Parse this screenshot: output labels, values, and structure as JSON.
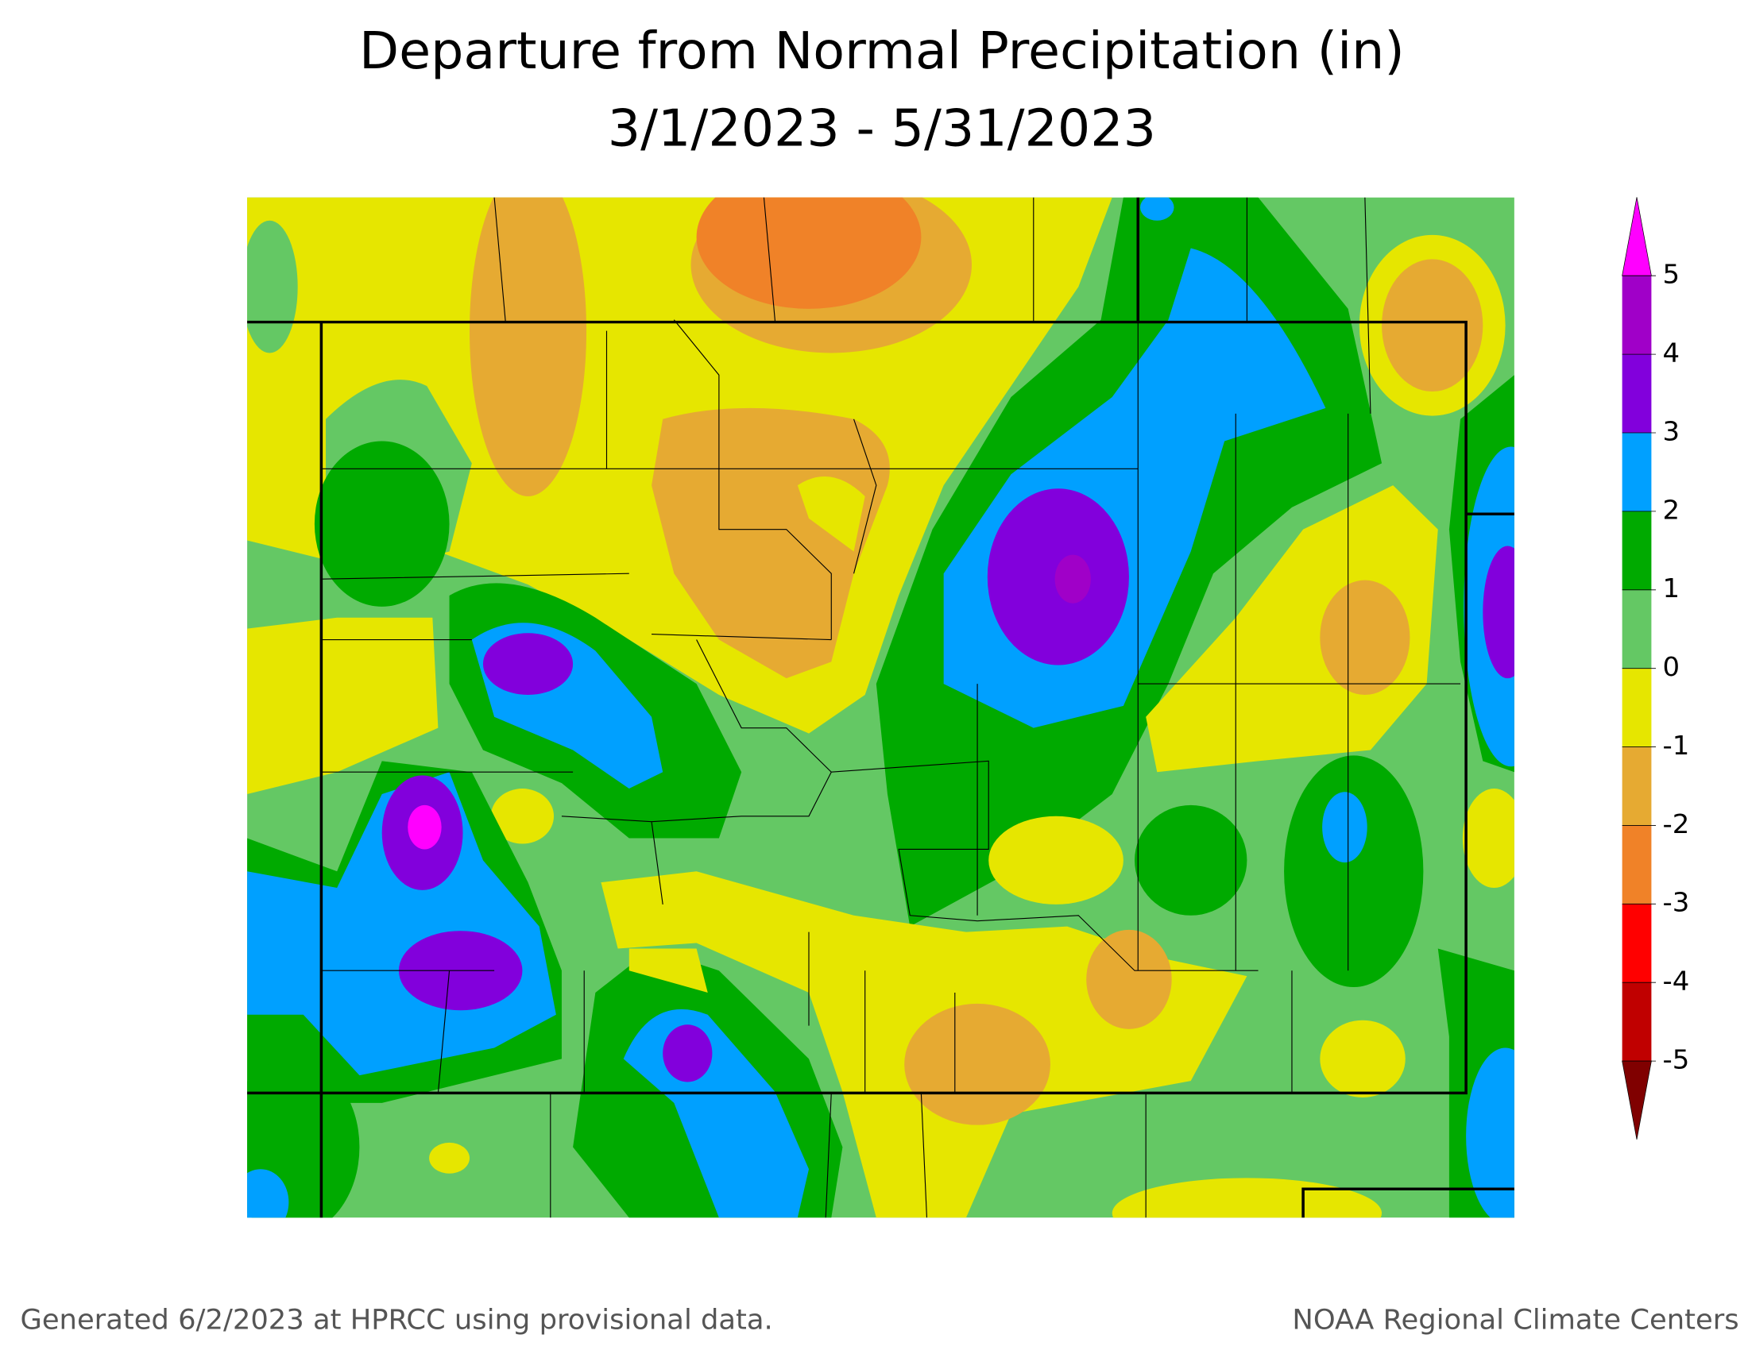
{
  "title": "Departure from Normal Precipitation (in)",
  "subtitle": "3/1/2023 - 5/31/2023",
  "colorbar": {
    "ticks": [
      5,
      4,
      3,
      2,
      1,
      0,
      -1,
      -2,
      -3,
      -4,
      -5
    ],
    "colors": [
      "#ff00ff",
      "#a000c8",
      "#8200dc",
      "#00a0ff",
      "#00aa00",
      "#64c864",
      "#e6e600",
      "#e6aa32",
      "#f08228",
      "#ff0000",
      "#c00000",
      "#800000"
    ]
  },
  "footer_left": "Generated 6/2/2023 at HPRCC using provisional data.",
  "footer_right": "NOAA Regional Climate Centers"
}
